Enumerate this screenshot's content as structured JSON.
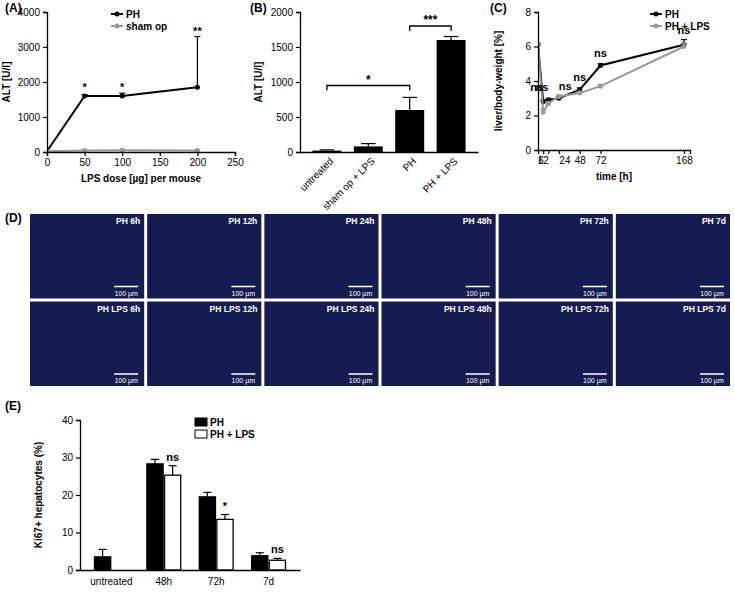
{
  "chart_data": [
    {
      "type": "line",
      "title": "(A)",
      "x_label": "LPS dose [µg] per mouse",
      "y_label": "ALT [U/l]",
      "x": [
        0,
        50,
        100,
        200
      ],
      "series": [
        {
          "name": "PH",
          "color": "#000000",
          "marker": "circle",
          "values": [
            20,
            1600,
            1600,
            1850
          ],
          "errors": [
            5,
            40,
            80,
            1450
          ]
        },
        {
          "name": "sham op",
          "color": "#999999",
          "marker": "circle",
          "values": [
            20,
            40,
            50,
            45
          ],
          "errors": [
            5,
            10,
            10,
            10
          ]
        }
      ],
      "xlim": [
        0,
        250
      ],
      "xticks": [
        0,
        50,
        100,
        150,
        200,
        250
      ],
      "ylim": [
        0,
        4000
      ],
      "yticks": [
        0,
        1000,
        2000,
        3000,
        4000
      ],
      "annotations": [
        {
          "x": 50,
          "y": 1750,
          "text": "*"
        },
        {
          "x": 100,
          "y": 1750,
          "text": "*"
        },
        {
          "x": 200,
          "y": 3350,
          "text": "**"
        }
      ],
      "legend": "top"
    },
    {
      "type": "bar",
      "title": "(B)",
      "y_label": "ALT [U/l]",
      "categories": [
        "untreated",
        "sham op + LPS",
        "PH",
        "PH + LPS"
      ],
      "values": [
        20,
        80,
        600,
        1600
      ],
      "errors": [
        10,
        40,
        180,
        50
      ],
      "color": "#000000",
      "ylim": [
        0,
        2000
      ],
      "yticks": [
        0,
        500,
        1000,
        1500,
        2000
      ],
      "annotations": [
        {
          "from": "untreated",
          "to": "PH",
          "y": 950,
          "text": "*"
        },
        {
          "from": "PH",
          "to": "PH + LPS",
          "y": 1800,
          "text": "***"
        }
      ]
    },
    {
      "type": "line",
      "title": "(C)",
      "x_label": "time [h]",
      "y_label": "liver/body-weight [%]",
      "x": [
        0,
        6,
        12,
        24,
        48,
        72,
        168
      ],
      "series": [
        {
          "name": "PH",
          "color": "#000000",
          "marker": "circle",
          "values": [
            6.1,
            2.8,
            2.9,
            3.0,
            3.5,
            4.9,
            6.1
          ],
          "errors": [
            0.1,
            0.1,
            0.1,
            0.1,
            0.1,
            0.1,
            0.3
          ]
        },
        {
          "name": "PH + LPS",
          "color": "#999999",
          "marker": "circle",
          "values": [
            6.1,
            2.2,
            2.7,
            3.1,
            3.3,
            3.7,
            6.0
          ],
          "errors": [
            0.1,
            0.2,
            0.1,
            0.1,
            0.1,
            0.1,
            0.2
          ]
        }
      ],
      "xlim": [
        0,
        175
      ],
      "xticks": [
        6,
        12,
        24,
        48,
        72,
        168
      ],
      "ylim": [
        0,
        8
      ],
      "yticks": [
        0,
        2,
        4,
        6,
        8
      ],
      "annotations": [
        {
          "x": 6,
          "y": 3.4,
          "text": "ns"
        },
        {
          "x": 12,
          "y": 3.4,
          "text": "ns"
        },
        {
          "x": 24,
          "y": 3.5,
          "text": "ns"
        },
        {
          "x": 48,
          "y": 4.0,
          "text": "ns"
        },
        {
          "x": 72,
          "y": 5.4,
          "text": "ns"
        },
        {
          "x": 168,
          "y": 6.7,
          "text": "ns"
        }
      ],
      "legend": "top-right"
    },
    {
      "type": "image_grid",
      "title": "(D)",
      "panels": [
        [
          "PH 6h",
          "PH 12h",
          "PH 24h",
          "PH 48h",
          "PH 72h",
          "PH 7d"
        ],
        [
          "PH LPS 6h",
          "PH LPS 12h",
          "PH LPS 24h",
          "PH LPS 48h",
          "PH LPS 72h",
          "PH LPS 7d"
        ]
      ],
      "scale_bar": "100 µm"
    },
    {
      "type": "bar",
      "title": "(E)",
      "y_label": "Ki67+ hepatocytes (%)",
      "categories": [
        "untreated",
        "48h",
        "72h",
        "7d"
      ],
      "series": [
        {
          "name": "PH",
          "color": "#000000",
          "values": [
            3.5,
            28.3,
            19.5,
            3.8
          ],
          "errors": [
            2.0,
            1.2,
            1.2,
            0.8
          ]
        },
        {
          "name": "PH + LPS",
          "color": "#ffffff",
          "values": [
            null,
            25.3,
            13.5,
            2.6
          ],
          "errors": [
            null,
            2.5,
            1.3,
            0.5
          ]
        }
      ],
      "ylim": [
        0,
        40
      ],
      "yticks": [
        0,
        10,
        20,
        30,
        40
      ],
      "annotations": [
        {
          "category": "48h",
          "series": "PH + LPS",
          "y": 29,
          "text": "ns"
        },
        {
          "category": "72h",
          "series": "PH + LPS",
          "y": 16,
          "text": "*"
        },
        {
          "category": "7d",
          "series": "PH + LPS",
          "y": 4.5,
          "text": "ns"
        }
      ],
      "legend": "top-right"
    }
  ]
}
